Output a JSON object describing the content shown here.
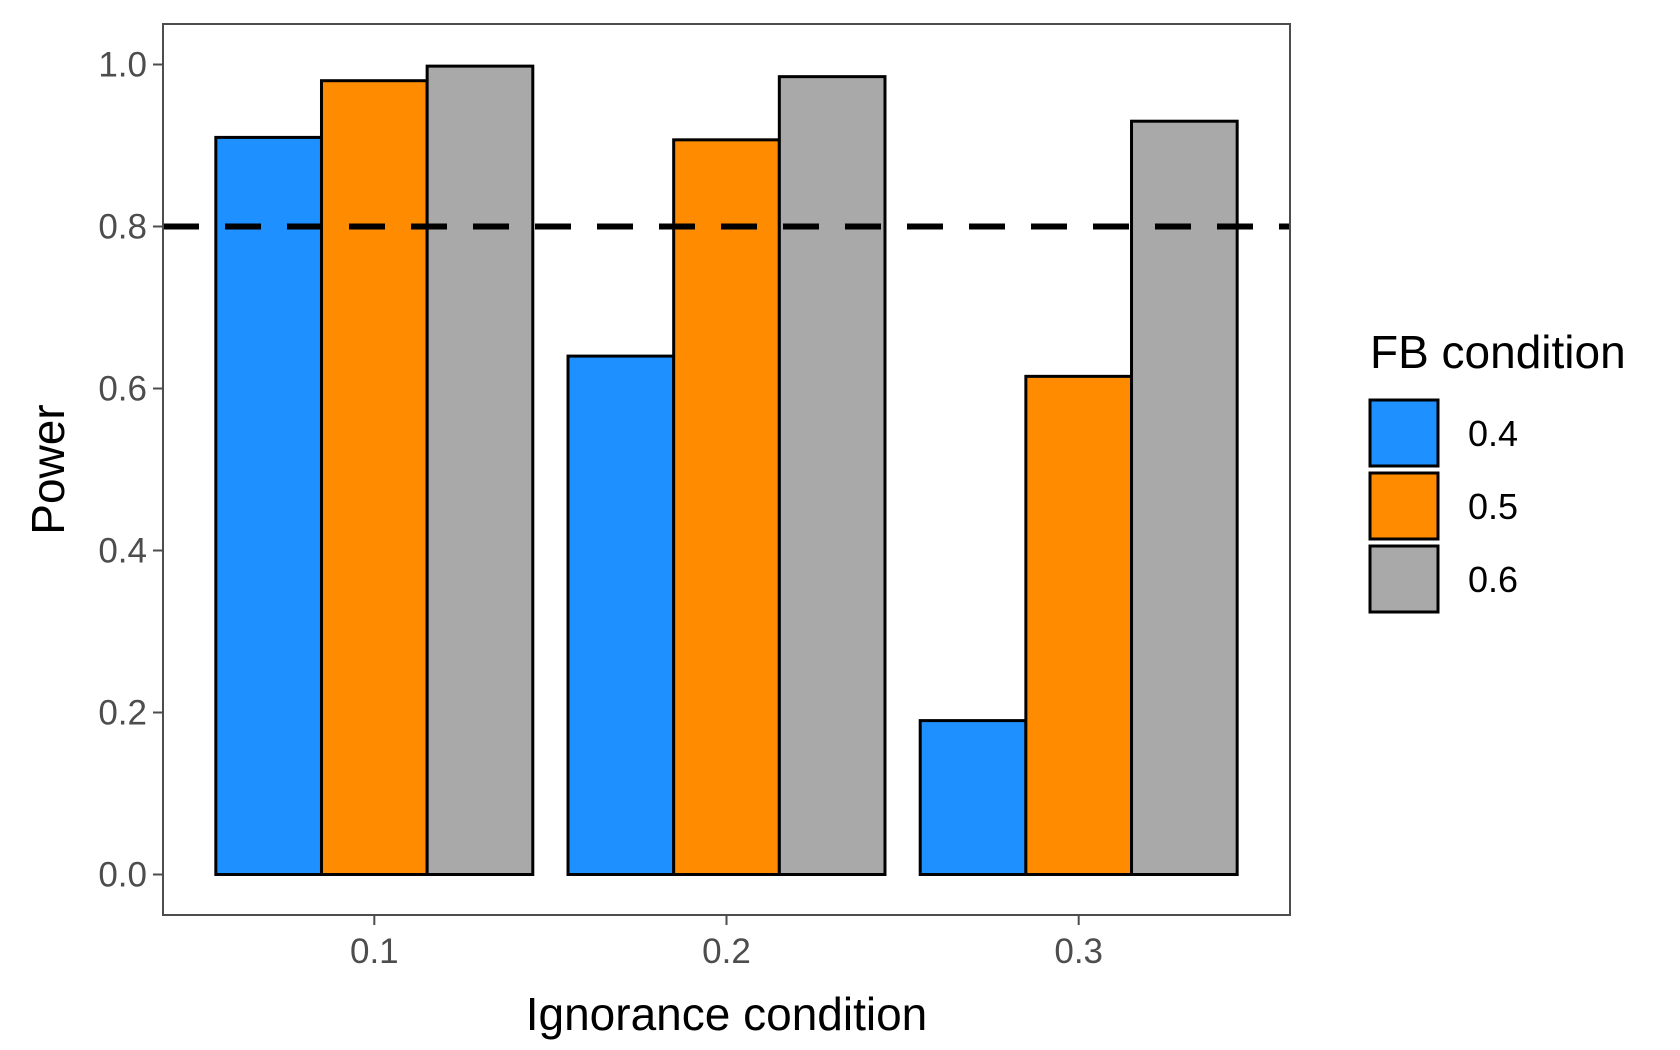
{
  "chart_data": {
    "type": "bar",
    "xlabel": "Ignorance condition",
    "ylabel": "Power",
    "categories": [
      "0.1",
      "0.2",
      "0.3"
    ],
    "ylim": [
      -0.05,
      1.05
    ],
    "yticks": [
      0.0,
      0.2,
      0.4,
      0.6,
      0.8,
      1.0
    ],
    "ytick_labels": [
      "0.0",
      "0.2",
      "0.4",
      "0.6",
      "0.8",
      "1.0"
    ],
    "reference_line": {
      "y": 0.8,
      "style": "dashed",
      "color": "#000000"
    },
    "grid": false,
    "legend": {
      "title": "FB condition",
      "placement": "right"
    },
    "series": [
      {
        "name": "0.4",
        "color": "#1E90FF",
        "values": [
          0.91,
          0.64,
          0.19
        ]
      },
      {
        "name": "0.5",
        "color": "#FF8C00",
        "values": [
          0.98,
          0.907,
          0.615
        ]
      },
      {
        "name": "0.6",
        "color": "#A9A9A9",
        "values": [
          0.998,
          0.985,
          0.93
        ]
      }
    ]
  }
}
